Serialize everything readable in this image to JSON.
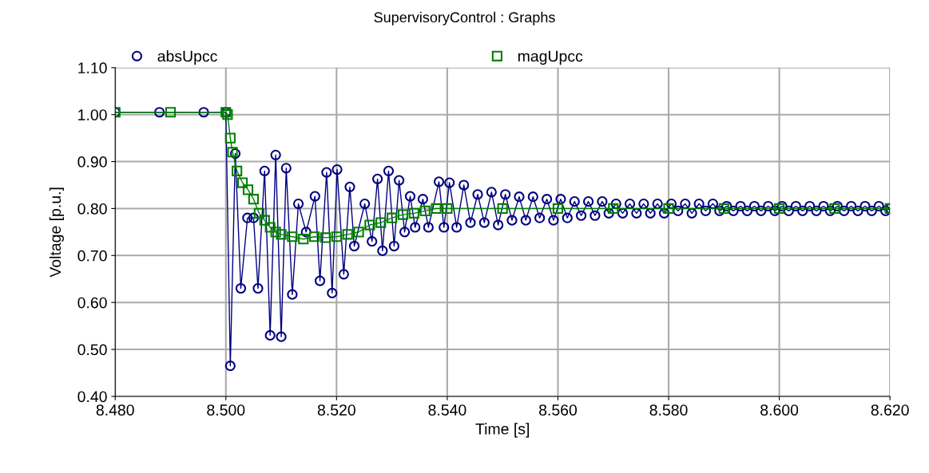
{
  "chart_data": {
    "type": "line",
    "title": "SupervisoryControl : Graphs",
    "xlabel": "Time [s]",
    "ylabel": "Voltage [p.u.]",
    "xlim": [
      8.48,
      8.62
    ],
    "ylim": [
      0.4,
      1.1
    ],
    "xticks": [
      {
        "value": 8.48,
        "label": "8.480"
      },
      {
        "value": 8.5,
        "label": "8.500"
      },
      {
        "value": 8.52,
        "label": "8.520"
      },
      {
        "value": 8.54,
        "label": "8.540"
      },
      {
        "value": 8.56,
        "label": "8.560"
      },
      {
        "value": 8.58,
        "label": "8.580"
      },
      {
        "value": 8.6,
        "label": "8.600"
      },
      {
        "value": 8.62,
        "label": "8.620"
      }
    ],
    "yticks": [
      {
        "value": 0.4,
        "label": "0.40"
      },
      {
        "value": 0.5,
        "label": "0.50"
      },
      {
        "value": 0.6,
        "label": "0.60"
      },
      {
        "value": 0.7,
        "label": "0.70"
      },
      {
        "value": 0.8,
        "label": "0.80"
      },
      {
        "value": 0.9,
        "label": "0.90"
      },
      {
        "value": 1.0,
        "label": "1.00"
      },
      {
        "value": 1.1,
        "label": "1.10"
      }
    ],
    "grid": true,
    "legend": "top",
    "line_style": "solid",
    "series": [
      {
        "name": "absUpcc",
        "color": "#000080",
        "marker": "circle",
        "x": [
          8.48,
          8.488,
          8.496,
          8.5,
          8.5008,
          8.5017,
          8.5027,
          8.5039,
          8.505,
          8.5058,
          8.507,
          8.508,
          8.509,
          8.51,
          8.5109,
          8.512,
          8.5131,
          8.5145,
          8.5161,
          8.517,
          8.5182,
          8.5192,
          8.5201,
          8.5213,
          8.5224,
          8.5232,
          8.5251,
          8.5264,
          8.5274,
          8.5283,
          8.5294,
          8.5304,
          8.5313,
          8.5323,
          8.5333,
          8.5342,
          8.5356,
          8.5366,
          8.5385,
          8.5394,
          8.5404,
          8.5417,
          8.543,
          8.5442,
          8.5455,
          8.5467,
          8.548,
          8.5492,
          8.5505,
          8.5517,
          8.553,
          8.5542,
          8.5555,
          8.5567,
          8.558,
          8.5592,
          8.5605,
          8.5617,
          8.563,
          8.5642,
          8.5655,
          8.5667,
          8.568,
          8.5692,
          8.5705,
          8.5717,
          8.573,
          8.5742,
          8.5755,
          8.5767,
          8.578,
          8.5792,
          8.5805,
          8.5817,
          8.583,
          8.5842,
          8.5855,
          8.5867,
          8.588,
          8.5892,
          8.5905,
          8.5917,
          8.593,
          8.5942,
          8.5955,
          8.5967,
          8.598,
          8.5992,
          8.6005,
          8.6017,
          8.603,
          8.6042,
          8.6055,
          8.6067,
          8.608,
          8.6092,
          8.6105,
          8.6117,
          8.613,
          8.6142,
          8.6155,
          8.6167,
          8.618,
          8.6192,
          8.62
        ],
        "values": [
          1.005,
          1.005,
          1.005,
          1.005,
          0.465,
          0.917,
          0.63,
          0.78,
          0.78,
          0.63,
          0.88,
          0.53,
          0.914,
          0.527,
          0.886,
          0.617,
          0.81,
          0.75,
          0.826,
          0.646,
          0.877,
          0.62,
          0.883,
          0.66,
          0.846,
          0.72,
          0.81,
          0.73,
          0.863,
          0.71,
          0.88,
          0.72,
          0.86,
          0.75,
          0.826,
          0.76,
          0.82,
          0.76,
          0.857,
          0.76,
          0.855,
          0.76,
          0.85,
          0.77,
          0.83,
          0.77,
          0.835,
          0.765,
          0.83,
          0.775,
          0.825,
          0.775,
          0.825,
          0.78,
          0.82,
          0.775,
          0.82,
          0.78,
          0.815,
          0.785,
          0.815,
          0.785,
          0.815,
          0.79,
          0.81,
          0.79,
          0.81,
          0.79,
          0.81,
          0.79,
          0.81,
          0.79,
          0.81,
          0.795,
          0.81,
          0.79,
          0.81,
          0.795,
          0.81,
          0.795,
          0.805,
          0.795,
          0.805,
          0.795,
          0.805,
          0.795,
          0.805,
          0.795,
          0.805,
          0.795,
          0.805,
          0.795,
          0.805,
          0.795,
          0.805,
          0.795,
          0.805,
          0.795,
          0.805,
          0.795,
          0.805,
          0.795,
          0.805,
          0.795,
          0.8
        ]
      },
      {
        "name": "magUpcc",
        "color": "#008000",
        "marker": "square",
        "x": [
          8.48,
          8.49,
          8.5,
          8.5003,
          8.5008,
          8.5012,
          8.502,
          8.503,
          8.504,
          8.505,
          8.506,
          8.507,
          8.508,
          8.509,
          8.51,
          8.512,
          8.514,
          8.516,
          8.518,
          8.52,
          8.522,
          8.524,
          8.526,
          8.528,
          8.53,
          8.532,
          8.534,
          8.536,
          8.538,
          8.54,
          8.55,
          8.56,
          8.57,
          8.58,
          8.59,
          8.6,
          8.61,
          8.62
        ],
        "values": [
          1.005,
          1.005,
          1.005,
          1.0,
          0.95,
          0.92,
          0.88,
          0.855,
          0.84,
          0.82,
          0.79,
          0.775,
          0.76,
          0.75,
          0.745,
          0.74,
          0.735,
          0.74,
          0.738,
          0.74,
          0.745,
          0.75,
          0.765,
          0.77,
          0.78,
          0.787,
          0.79,
          0.795,
          0.8,
          0.8,
          0.8,
          0.8,
          0.8,
          0.8,
          0.8,
          0.8,
          0.8,
          0.8
        ]
      }
    ]
  }
}
